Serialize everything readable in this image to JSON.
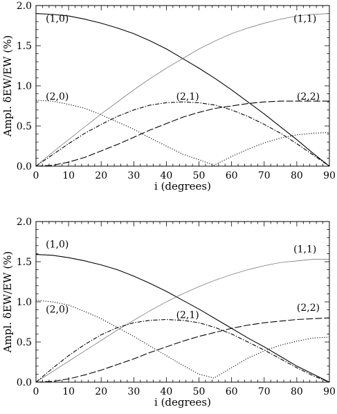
{
  "chart_data": [
    {
      "type": "line",
      "xlabel": "i (degrees)",
      "ylabel": "Ampl. δEW/EW (%)",
      "xlim": [
        0,
        90
      ],
      "ylim": [
        0,
        2.0
      ],
      "xticks": [
        0,
        10,
        20,
        30,
        40,
        50,
        60,
        70,
        80,
        90
      ],
      "yticks": [
        "0.0",
        "0.5",
        "1.0",
        "1.5",
        "2.0"
      ],
      "grid": false,
      "annotations": [
        {
          "text": "(1,0)",
          "x": 3,
          "y": 1.84
        },
        {
          "text": "(1,1)",
          "x": 79,
          "y": 1.84
        },
        {
          "text": "(2,0)",
          "x": 3,
          "y": 0.87
        },
        {
          "text": "(2,1)",
          "x": 43,
          "y": 0.87
        },
        {
          "text": "(2,2)",
          "x": 80,
          "y": 0.87
        }
      ],
      "series": [
        {
          "label_ref": "(1,0)",
          "style": "solid",
          "color": "#000000",
          "x": [
            0,
            5,
            10,
            15,
            20,
            25,
            30,
            35,
            40,
            45,
            50,
            55,
            60,
            65,
            70,
            75,
            80,
            85,
            90
          ],
          "y": [
            1.9,
            1.89,
            1.87,
            1.83,
            1.78,
            1.72,
            1.65,
            1.56,
            1.46,
            1.34,
            1.22,
            1.09,
            0.95,
            0.8,
            0.65,
            0.49,
            0.33,
            0.16,
            0.0
          ]
        },
        {
          "label_ref": "(1,1)",
          "style": "thin",
          "color": "#666666",
          "x": [
            0,
            5,
            10,
            15,
            20,
            25,
            30,
            35,
            40,
            45,
            50,
            55,
            60,
            65,
            70,
            75,
            80,
            85,
            90
          ],
          "y": [
            0.0,
            0.17,
            0.33,
            0.49,
            0.65,
            0.8,
            0.95,
            1.09,
            1.22,
            1.34,
            1.46,
            1.56,
            1.65,
            1.72,
            1.78,
            1.83,
            1.87,
            1.89,
            1.9
          ]
        },
        {
          "label_ref": "(2,0)",
          "style": "dotted",
          "color": "#000000",
          "x": [
            0,
            5,
            10,
            15,
            20,
            25,
            30,
            35,
            40,
            45,
            50,
            54.7,
            55,
            60,
            65,
            70,
            75,
            80,
            85,
            90
          ],
          "y": [
            0.82,
            0.81,
            0.77,
            0.72,
            0.64,
            0.55,
            0.46,
            0.35,
            0.25,
            0.15,
            0.08,
            0.01,
            0.02,
            0.12,
            0.21,
            0.29,
            0.35,
            0.39,
            0.41,
            0.42
          ]
        },
        {
          "label_ref": "(2,1)",
          "style": "dashdot",
          "color": "#000000",
          "x": [
            0,
            5,
            10,
            15,
            20,
            25,
            30,
            35,
            40,
            45,
            50,
            55,
            60,
            65,
            70,
            75,
            80,
            85,
            90
          ],
          "y": [
            0.0,
            0.14,
            0.28,
            0.41,
            0.52,
            0.62,
            0.7,
            0.76,
            0.79,
            0.8,
            0.79,
            0.76,
            0.7,
            0.62,
            0.52,
            0.41,
            0.28,
            0.14,
            0.0
          ]
        },
        {
          "label_ref": "(2,2)",
          "style": "longdash",
          "color": "#000000",
          "x": [
            0,
            5,
            10,
            15,
            20,
            25,
            30,
            35,
            40,
            45,
            50,
            55,
            60,
            65,
            70,
            75,
            80,
            85,
            90
          ],
          "y": [
            0.0,
            0.01,
            0.05,
            0.11,
            0.19,
            0.27,
            0.36,
            0.45,
            0.53,
            0.61,
            0.67,
            0.72,
            0.75,
            0.78,
            0.8,
            0.81,
            0.81,
            0.81,
            0.81
          ]
        }
      ]
    },
    {
      "type": "line",
      "xlabel": "i (degrees)",
      "ylabel": "Ampl. δEW/EW (%)",
      "xlim": [
        0,
        90
      ],
      "ylim": [
        0,
        2.0
      ],
      "xticks": [
        0,
        10,
        20,
        30,
        40,
        50,
        60,
        70,
        80,
        90
      ],
      "yticks": [
        "0.0",
        "0.5",
        "1.0",
        "1.5",
        "2.0"
      ],
      "grid": false,
      "annotations": [
        {
          "text": "(1,0)",
          "x": 3,
          "y": 1.72
        },
        {
          "text": "(1,1)",
          "x": 79,
          "y": 1.66
        },
        {
          "text": "(2,0)",
          "x": 3,
          "y": 0.91
        },
        {
          "text": "(2,1)",
          "x": 43,
          "y": 0.84
        },
        {
          "text": "(2,2)",
          "x": 80,
          "y": 0.93
        }
      ],
      "series": [
        {
          "label_ref": "(1,0)",
          "style": "solid",
          "color": "#000000",
          "x": [
            0,
            5,
            10,
            15,
            20,
            25,
            30,
            35,
            40,
            45,
            50,
            55,
            60,
            65,
            70,
            75,
            80,
            85,
            90
          ],
          "y": [
            1.59,
            1.58,
            1.55,
            1.51,
            1.46,
            1.4,
            1.32,
            1.23,
            1.13,
            1.02,
            0.91,
            0.79,
            0.67,
            0.55,
            0.44,
            0.32,
            0.2,
            0.1,
            0.0
          ]
        },
        {
          "label_ref": "(1,1)",
          "style": "thin",
          "color": "#666666",
          "x": [
            0,
            5,
            10,
            15,
            20,
            25,
            30,
            35,
            40,
            45,
            50,
            55,
            60,
            65,
            70,
            75,
            80,
            85,
            90
          ],
          "y": [
            0.0,
            0.13,
            0.26,
            0.39,
            0.52,
            0.65,
            0.77,
            0.89,
            1.0,
            1.1,
            1.19,
            1.27,
            1.34,
            1.4,
            1.45,
            1.49,
            1.51,
            1.53,
            1.53
          ]
        },
        {
          "label_ref": "(2,0)",
          "style": "dotted",
          "color": "#000000",
          "x": [
            0,
            5,
            10,
            15,
            20,
            25,
            30,
            35,
            40,
            45,
            50,
            54.7,
            55,
            60,
            65,
            70,
            75,
            80,
            85,
            90
          ],
          "y": [
            1.02,
            1.0,
            0.96,
            0.88,
            0.79,
            0.68,
            0.57,
            0.45,
            0.33,
            0.21,
            0.1,
            0.05,
            0.06,
            0.18,
            0.3,
            0.39,
            0.46,
            0.51,
            0.55,
            0.56
          ]
        },
        {
          "label_ref": "(2,1)",
          "style": "dashdot",
          "color": "#000000",
          "x": [
            0,
            5,
            10,
            15,
            20,
            25,
            30,
            35,
            40,
            45,
            50,
            55,
            60,
            65,
            70,
            75,
            80,
            85,
            90
          ],
          "y": [
            0.0,
            0.17,
            0.33,
            0.47,
            0.59,
            0.68,
            0.74,
            0.77,
            0.78,
            0.77,
            0.74,
            0.68,
            0.6,
            0.5,
            0.4,
            0.29,
            0.18,
            0.08,
            0.0
          ]
        },
        {
          "label_ref": "(2,2)",
          "style": "longdash",
          "color": "#000000",
          "x": [
            0,
            5,
            10,
            15,
            20,
            25,
            30,
            35,
            40,
            45,
            50,
            55,
            60,
            65,
            70,
            75,
            80,
            85,
            90
          ],
          "y": [
            0.0,
            0.01,
            0.04,
            0.09,
            0.15,
            0.22,
            0.29,
            0.37,
            0.44,
            0.51,
            0.57,
            0.62,
            0.67,
            0.71,
            0.74,
            0.76,
            0.78,
            0.79,
            0.8
          ]
        }
      ]
    }
  ]
}
